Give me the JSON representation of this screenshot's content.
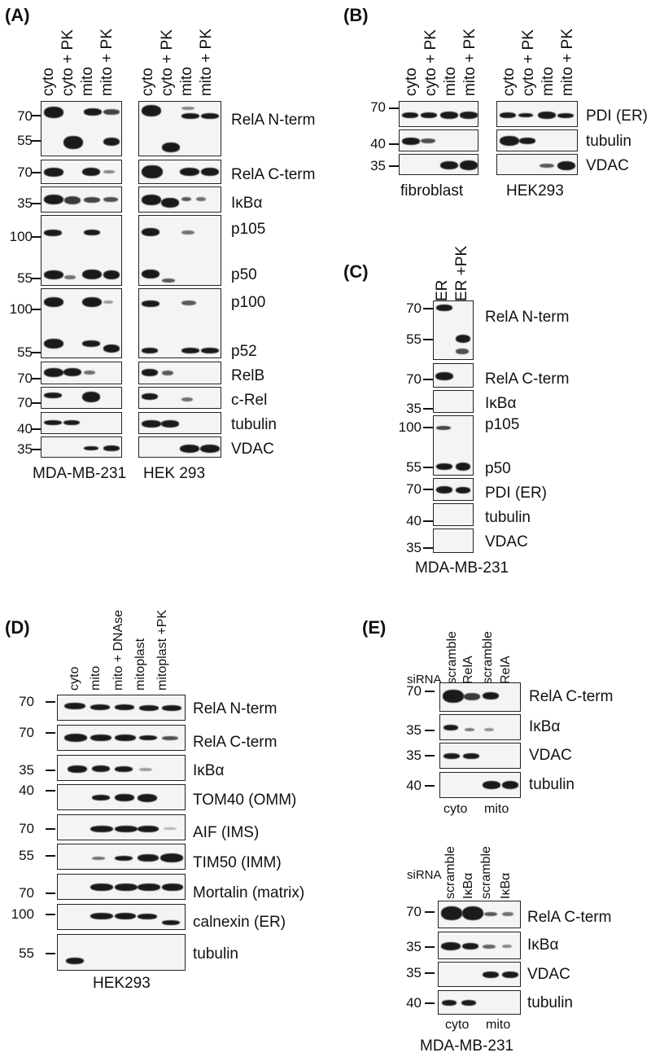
{
  "panels": {
    "A": {
      "label": "(A)",
      "lanes": [
        "cyto",
        "cyto + PK",
        "mito",
        "mito + PK"
      ],
      "rows": [
        "RelA N-term",
        "RelA C-term",
        "IκBα",
        "p105",
        "p50",
        "p100",
        "p52",
        "RelB",
        "c-Rel",
        "tubulin",
        "VDAC"
      ],
      "markers": [
        "70",
        "55",
        "70",
        "35",
        "100",
        "55",
        "100",
        "55",
        "70",
        "70",
        "40",
        "35"
      ],
      "cell_lines": [
        "MDA-MB-231",
        "HEK 293"
      ]
    },
    "B": {
      "label": "(B)",
      "lanes": [
        "cyto",
        "cyto + PK",
        "mito",
        "mito + PK"
      ],
      "rows": [
        "PDI (ER)",
        "tubulin",
        "VDAC"
      ],
      "markers": [
        "70",
        "40",
        "35"
      ],
      "cell_lines": [
        "fibroblast",
        "HEK293"
      ]
    },
    "C": {
      "label": "(C)",
      "lanes": [
        "ER",
        "ER +PK"
      ],
      "rows": [
        "RelA N-term",
        "RelA C-term",
        "IκBα",
        "p105",
        "p50",
        "PDI (ER)",
        "tubulin",
        "VDAC"
      ],
      "markers": [
        "70",
        "55",
        "70",
        "35",
        "100",
        "55",
        "70",
        "40",
        "35"
      ],
      "cell_line": "MDA-MB-231"
    },
    "D": {
      "label": "(D)",
      "lanes": [
        "cyto",
        "mito",
        "mito + DNAse",
        "mitoplast",
        "mitoplast +PK"
      ],
      "rows": [
        "RelA N-term",
        "RelA C-term",
        "IκBα",
        "TOM40 (OMM)",
        "AIF (IMS)",
        "TIM50 (IMM)",
        "Mortalin (matrix)",
        "calnexin (ER)",
        "tubulin"
      ],
      "markers": [
        "70",
        "70",
        "35",
        "40",
        "70",
        "55",
        "70",
        "100",
        "55"
      ],
      "cell_line": "HEK293"
    },
    "E": {
      "label": "(E)",
      "sirna_label": "siRNA",
      "top": {
        "lanes": [
          "scramble",
          "RelA",
          "scramble",
          "RelA"
        ],
        "rows": [
          "RelA C-term",
          "IκBα",
          "VDAC",
          "tubulin"
        ],
        "markers": [
          "70",
          "35",
          "35",
          "40"
        ],
        "groups": [
          "cyto",
          "mito"
        ]
      },
      "bottom": {
        "lanes": [
          "scramble",
          "IκBα",
          "scramble",
          "IκBα"
        ],
        "rows": [
          "RelA C-term",
          "IκBα",
          "VDAC",
          "tubulin"
        ],
        "markers": [
          "70",
          "35",
          "35",
          "40"
        ],
        "groups": [
          "cyto",
          "mito"
        ]
      },
      "cell_line": "MDA-MB-231"
    }
  }
}
